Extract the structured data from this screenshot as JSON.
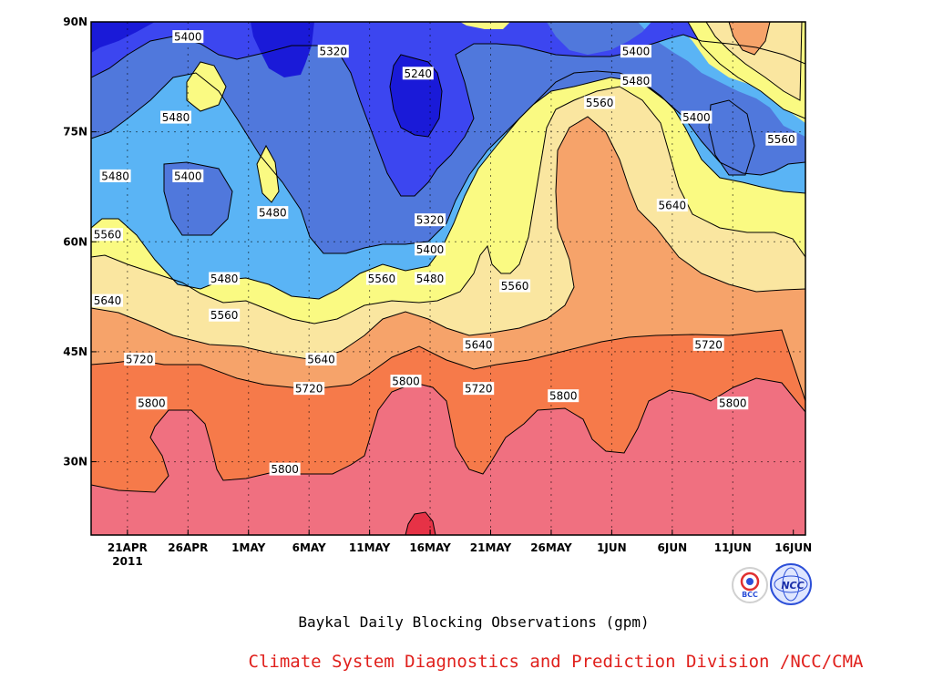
{
  "chart_data": {
    "type": "heatmap",
    "title": "Baykal Daily Blocking Observations (gpm)",
    "credit": "Climate System Diagnostics and Prediction Division /NCC/CMA",
    "x_ticks": [
      "21APR",
      "26APR",
      "1MAY",
      "6MAY",
      "11MAY",
      "16MAY",
      "21MAY",
      "26MAY",
      "1JUN",
      "6JUN",
      "11JUN",
      "16JUN"
    ],
    "x_year": "2011",
    "y_ticks": [
      "90N",
      "75N",
      "60N",
      "45N",
      "30N"
    ],
    "xlim": [
      "2011-04-18",
      "2011-06-16"
    ],
    "ylim_deg_north": [
      20,
      90
    ],
    "contour_levels": [
      5240,
      5320,
      5400,
      5480,
      5560,
      5640,
      5720,
      5800,
      5880
    ],
    "contour_labels": [
      {
        "value": "5400",
        "date": "2011-04-26",
        "lat": 88
      },
      {
        "value": "5320",
        "date": "2011-05-08",
        "lat": 86
      },
      {
        "value": "5240",
        "date": "2011-05-15",
        "lat": 83
      },
      {
        "value": "5400",
        "date": "2011-06-02",
        "lat": 86
      },
      {
        "value": "5480",
        "date": "2011-06-02",
        "lat": 82
      },
      {
        "value": "5560",
        "date": "2011-05-30",
        "lat": 79
      },
      {
        "value": "5400",
        "date": "2011-06-07",
        "lat": 77
      },
      {
        "value": "5560",
        "date": "2011-06-14",
        "lat": 74
      },
      {
        "value": "5480",
        "date": "2011-04-25",
        "lat": 77
      },
      {
        "value": "5480",
        "date": "2011-04-20",
        "lat": 69
      },
      {
        "value": "5400",
        "date": "2011-04-26",
        "lat": 69
      },
      {
        "value": "5480",
        "date": "2011-05-03",
        "lat": 64
      },
      {
        "value": "5320",
        "date": "2011-05-16",
        "lat": 63
      },
      {
        "value": "5640",
        "date": "2011-06-05",
        "lat": 65
      },
      {
        "value": "5560",
        "date": "2011-04-18",
        "lat": 61
      },
      {
        "value": "5400",
        "date": "2011-05-16",
        "lat": 59
      },
      {
        "value": "5480",
        "date": "2011-04-29",
        "lat": 55
      },
      {
        "value": "5560",
        "date": "2011-05-12",
        "lat": 55
      },
      {
        "value": "5480",
        "date": "2011-05-16",
        "lat": 55
      },
      {
        "value": "5560",
        "date": "2011-05-23",
        "lat": 54
      },
      {
        "value": "5640",
        "date": "2011-04-18",
        "lat": 52
      },
      {
        "value": "5560",
        "date": "2011-04-29",
        "lat": 50
      },
      {
        "value": "5640",
        "date": "2011-05-20",
        "lat": 46
      },
      {
        "value": "5720",
        "date": "2011-06-08",
        "lat": 46
      },
      {
        "value": "5720",
        "date": "2011-04-22",
        "lat": 44
      },
      {
        "value": "5640",
        "date": "2011-05-07",
        "lat": 44
      },
      {
        "value": "5720",
        "date": "2011-05-06",
        "lat": 40
      },
      {
        "value": "5800",
        "date": "2011-05-14",
        "lat": 41
      },
      {
        "value": "5720",
        "date": "2011-05-20",
        "lat": 40
      },
      {
        "value": "5800",
        "date": "2011-05-27",
        "lat": 39
      },
      {
        "value": "5800",
        "date": "2011-04-23",
        "lat": 38
      },
      {
        "value": "5800",
        "date": "2011-06-10",
        "lat": 38
      },
      {
        "value": "5800",
        "date": "2011-05-04",
        "lat": 29
      }
    ],
    "fill_colors": {
      "below_5240": "#1a1ad8",
      "5240_5320": "#3c46f0",
      "5320_5400": "#5078dc",
      "5400_5480": "#5ab4f5",
      "5480_5560": "#fafa82",
      "5560_5640": "#fae6a0",
      "5640_5720": "#f6a36a",
      "5720_5800": "#f67a4a",
      "5800_5880": "#f07080",
      "above_5880": "#e63246"
    }
  },
  "logos": [
    {
      "text": "BCC",
      "fill": "#ffffff",
      "ring": "#d0d0d0"
    },
    {
      "text": "NCC",
      "fill": "#dfe6ff",
      "ring": "#2c4fd8"
    }
  ]
}
